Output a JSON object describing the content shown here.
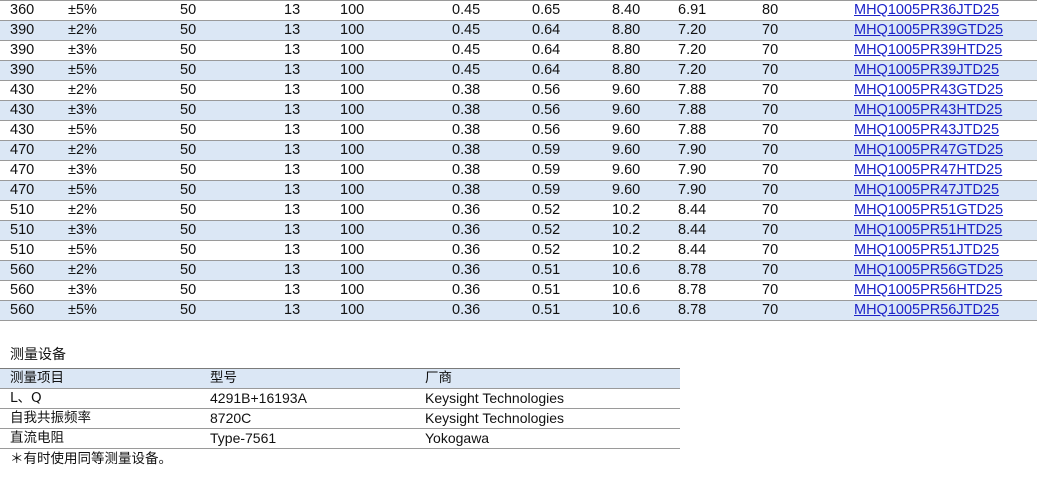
{
  "main_table": {
    "rows": [
      {
        "inductance": "360",
        "tolerance": "±5%",
        "test_freq": "50",
        "q_min": "13",
        "q_freq": "100",
        "rdc_typ": "0.45",
        "rdc_max": "0.65",
        "srf_min": "8.40",
        "srf_typ": "6.91",
        "idc": "80",
        "part": "MHQ1005PR36JTD25"
      },
      {
        "inductance": "390",
        "tolerance": "±2%",
        "test_freq": "50",
        "q_min": "13",
        "q_freq": "100",
        "rdc_typ": "0.45",
        "rdc_max": "0.64",
        "srf_min": "8.80",
        "srf_typ": "7.20",
        "idc": "70",
        "part": "MHQ1005PR39GTD25"
      },
      {
        "inductance": "390",
        "tolerance": "±3%",
        "test_freq": "50",
        "q_min": "13",
        "q_freq": "100",
        "rdc_typ": "0.45",
        "rdc_max": "0.64",
        "srf_min": "8.80",
        "srf_typ": "7.20",
        "idc": "70",
        "part": "MHQ1005PR39HTD25"
      },
      {
        "inductance": "390",
        "tolerance": "±5%",
        "test_freq": "50",
        "q_min": "13",
        "q_freq": "100",
        "rdc_typ": "0.45",
        "rdc_max": "0.64",
        "srf_min": "8.80",
        "srf_typ": "7.20",
        "idc": "70",
        "part": "MHQ1005PR39JTD25"
      },
      {
        "inductance": "430",
        "tolerance": "±2%",
        "test_freq": "50",
        "q_min": "13",
        "q_freq": "100",
        "rdc_typ": "0.38",
        "rdc_max": "0.56",
        "srf_min": "9.60",
        "srf_typ": "7.88",
        "idc": "70",
        "part": "MHQ1005PR43GTD25"
      },
      {
        "inductance": "430",
        "tolerance": "±3%",
        "test_freq": "50",
        "q_min": "13",
        "q_freq": "100",
        "rdc_typ": "0.38",
        "rdc_max": "0.56",
        "srf_min": "9.60",
        "srf_typ": "7.88",
        "idc": "70",
        "part": "MHQ1005PR43HTD25"
      },
      {
        "inductance": "430",
        "tolerance": "±5%",
        "test_freq": "50",
        "q_min": "13",
        "q_freq": "100",
        "rdc_typ": "0.38",
        "rdc_max": "0.56",
        "srf_min": "9.60",
        "srf_typ": "7.88",
        "idc": "70",
        "part": "MHQ1005PR43JTD25"
      },
      {
        "inductance": "470",
        "tolerance": "±2%",
        "test_freq": "50",
        "q_min": "13",
        "q_freq": "100",
        "rdc_typ": "0.38",
        "rdc_max": "0.59",
        "srf_min": "9.60",
        "srf_typ": "7.90",
        "idc": "70",
        "part": "MHQ1005PR47GTD25"
      },
      {
        "inductance": "470",
        "tolerance": "±3%",
        "test_freq": "50",
        "q_min": "13",
        "q_freq": "100",
        "rdc_typ": "0.38",
        "rdc_max": "0.59",
        "srf_min": "9.60",
        "srf_typ": "7.90",
        "idc": "70",
        "part": "MHQ1005PR47HTD25"
      },
      {
        "inductance": "470",
        "tolerance": "±5%",
        "test_freq": "50",
        "q_min": "13",
        "q_freq": "100",
        "rdc_typ": "0.38",
        "rdc_max": "0.59",
        "srf_min": "9.60",
        "srf_typ": "7.90",
        "idc": "70",
        "part": "MHQ1005PR47JTD25"
      },
      {
        "inductance": "510",
        "tolerance": "±2%",
        "test_freq": "50",
        "q_min": "13",
        "q_freq": "100",
        "rdc_typ": "0.36",
        "rdc_max": "0.52",
        "srf_min": "10.2",
        "srf_typ": "8.44",
        "idc": "70",
        "part": "MHQ1005PR51GTD25"
      },
      {
        "inductance": "510",
        "tolerance": "±3%",
        "test_freq": "50",
        "q_min": "13",
        "q_freq": "100",
        "rdc_typ": "0.36",
        "rdc_max": "0.52",
        "srf_min": "10.2",
        "srf_typ": "8.44",
        "idc": "70",
        "part": "MHQ1005PR51HTD25"
      },
      {
        "inductance": "510",
        "tolerance": "±5%",
        "test_freq": "50",
        "q_min": "13",
        "q_freq": "100",
        "rdc_typ": "0.36",
        "rdc_max": "0.52",
        "srf_min": "10.2",
        "srf_typ": "8.44",
        "idc": "70",
        "part": "MHQ1005PR51JTD25"
      },
      {
        "inductance": "560",
        "tolerance": "±2%",
        "test_freq": "50",
        "q_min": "13",
        "q_freq": "100",
        "rdc_typ": "0.36",
        "rdc_max": "0.51",
        "srf_min": "10.6",
        "srf_typ": "8.78",
        "idc": "70",
        "part": "MHQ1005PR56GTD25"
      },
      {
        "inductance": "560",
        "tolerance": "±3%",
        "test_freq": "50",
        "q_min": "13",
        "q_freq": "100",
        "rdc_typ": "0.36",
        "rdc_max": "0.51",
        "srf_min": "10.6",
        "srf_typ": "8.78",
        "idc": "70",
        "part": "MHQ1005PR56HTD25"
      },
      {
        "inductance": "560",
        "tolerance": "±5%",
        "test_freq": "50",
        "q_min": "13",
        "q_freq": "100",
        "rdc_typ": "0.36",
        "rdc_max": "0.51",
        "srf_min": "10.6",
        "srf_typ": "8.78",
        "idc": "70",
        "part": "MHQ1005PR56JTD25"
      }
    ]
  },
  "equipment": {
    "title": "测量设备",
    "headers": [
      "测量项目",
      "型号",
      "厂商"
    ],
    "rows": [
      {
        "item": "L、Q",
        "model": "4291B+16193A",
        "maker": "Keysight Technologies"
      },
      {
        "item": "自我共振频率",
        "model": "8720C",
        "maker": "Keysight Technologies"
      },
      {
        "item": "直流电阻",
        "model": "Type-7561",
        "maker": "Yokogawa"
      }
    ],
    "note": "＊有时使用同等测量设备。"
  },
  "colors": {
    "row_shade": "#dbe7f5",
    "link": "#1c23c9",
    "rule": "#9a9a9a"
  }
}
